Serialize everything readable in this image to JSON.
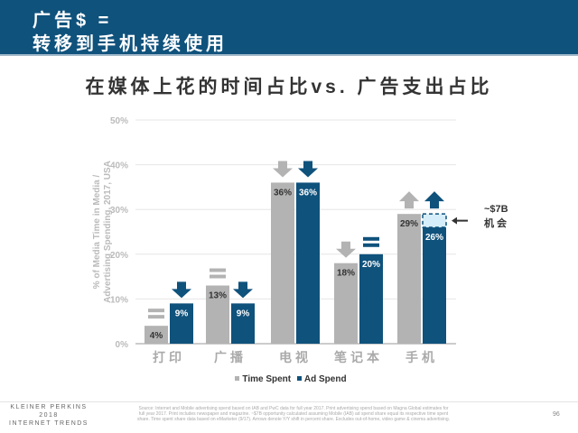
{
  "header": {
    "line1": "广告$ =",
    "line2": "转移到手机持续使用"
  },
  "chart_data": {
    "type": "bar",
    "title": "在媒体上花的时间占比vs. 广告支出占比",
    "ylabel": "% of Media Time in Media / Advertising Spending, 2017, USA",
    "ylim": [
      0,
      50
    ],
    "yticks": [
      "0%",
      "10%",
      "20%",
      "30%",
      "40%",
      "50%"
    ],
    "categories": [
      "打印",
      "广播",
      "电视",
      "笔记本",
      "手机"
    ],
    "series": [
      {
        "name": "Time Spent",
        "color": "#b3b3b3",
        "values": [
          4,
          13,
          36,
          18,
          29
        ],
        "labels": [
          "4%",
          "13%",
          "36%",
          "18%",
          "29%"
        ],
        "yoy": [
          "flat",
          "flat",
          "down",
          "down",
          "up"
        ]
      },
      {
        "name": "Ad Spend",
        "color": "#0f527c",
        "values": [
          9,
          9,
          36,
          20,
          26
        ],
        "labels": [
          "9%",
          "9%",
          "36%",
          "20%",
          "26%"
        ],
        "yoy": [
          "down",
          "down",
          "down",
          "flat",
          "up"
        ]
      }
    ],
    "opportunity": {
      "category": "手机",
      "from": 26,
      "to": 29,
      "label1": "~$7B",
      "label2": "机 会",
      "color": "#d6eefa"
    },
    "legend": "bottom"
  },
  "footer": {
    "brand1": "KLEINER PERKINS",
    "brand2": "2018",
    "brand3": "INTERNET TRENDS",
    "source": "Source: Internet and Mobile advertising spend based on IAB and PwC data for full year 2017. Print advertising spend based on Magna Global estimates for full year 2017. Print includes newspaper and magazine. ~$7B opportunity calculated assuming Mobile (IAB) ad spend share equal its respective time spent share. Time spent share data based on eMarketer (9/17). Arrows denote Y/Y shift in percent share. Excludes out-of-home, video game & cinema advertising.",
    "page": "96"
  }
}
